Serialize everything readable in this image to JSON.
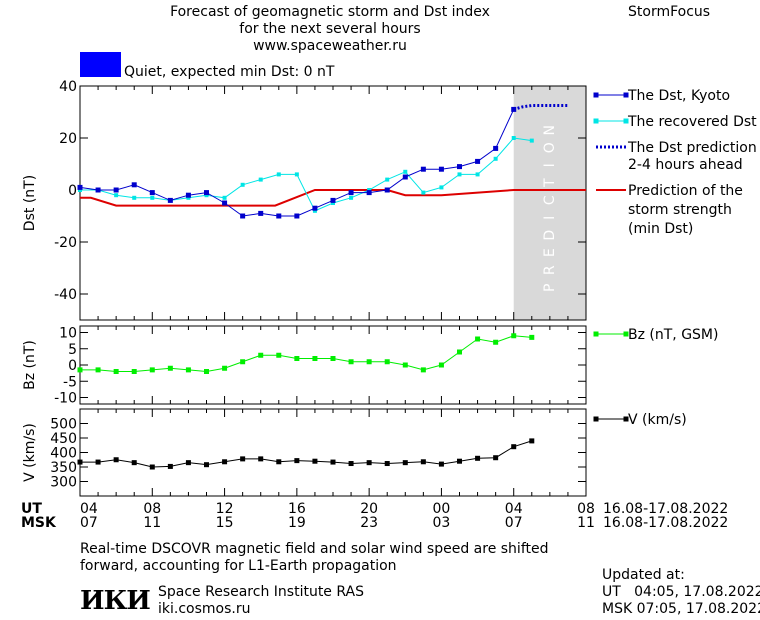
{
  "header": {
    "title_line1": "Forecast of geomagnetic storm and Dst index",
    "title_line2": "for the next several hours",
    "url": "www.spaceweather.ru",
    "brand": "StormFocus"
  },
  "status": {
    "color": "#0000ff",
    "text": "Quiet, expected min Dst: 0 nT"
  },
  "legend": {
    "dst_kyoto": "The Dst, Kyoto",
    "recovered": "The recovered Dst",
    "prediction_line1": "The Dst prediction",
    "prediction_line2": "2-4 hours ahead",
    "strength_line1": "Prediction of the",
    "strength_line2": "storm strength",
    "strength_line3": "(min Dst)",
    "bz": "Bz (nT, GSM)",
    "v": "V (km/s)"
  },
  "colors": {
    "dst_kyoto": "#0000cc",
    "recovered": "#00e5e5",
    "prediction": "#0000cc",
    "strength": "#dd0000",
    "bz": "#00ee00",
    "v": "#000000",
    "prediction_zone": "#d9d9d9"
  },
  "prediction_zone_label": "PREDICTION",
  "time_axis": {
    "ut_label": "UT",
    "msk_label": "MSK",
    "ut_ticks": [
      "04",
      "08",
      "12",
      "16",
      "20",
      "00",
      "04",
      "08"
    ],
    "msk_ticks": [
      "07",
      "11",
      "15",
      "19",
      "23",
      "03",
      "07",
      "11"
    ],
    "ut_dates": "16.08-17.08.2022",
    "msk_dates": "16.08-17.08.2022"
  },
  "footer": {
    "note_line1": "Real-time DSCOVR magnetic field and solar wind speed are shifted",
    "note_line2": "forward, accounting for L1-Earth propagation",
    "logo_text": "ИКИ",
    "institute": "Space Research Institute RAS",
    "site": "iki.cosmos.ru",
    "updated_label": "Updated at:",
    "updated_ut": "UT   04:05, 17.08.2022",
    "updated_msk": "MSK 07:05, 17.08.2022"
  },
  "chart_data": [
    {
      "type": "line",
      "ylabel": "Dst (nT)",
      "ylim": [
        -50,
        40
      ],
      "yticks": [
        40,
        20,
        0,
        -20,
        -40
      ],
      "xlim": [
        4,
        32
      ],
      "prediction_zone": [
        28,
        32
      ],
      "series": [
        {
          "name": "The Dst, Kyoto",
          "x": [
            4,
            5,
            6,
            7,
            8,
            9,
            10,
            11,
            12,
            13,
            14,
            15,
            16,
            17,
            18,
            19,
            20,
            21,
            22,
            23,
            24,
            25,
            26,
            27,
            28
          ],
          "values": [
            1,
            0,
            0,
            2,
            -1,
            -4,
            -2,
            -1,
            -5,
            -10,
            -9,
            -10,
            -10,
            -7,
            -4,
            -1,
            -1,
            0,
            5,
            8,
            8,
            9,
            11,
            16,
            31
          ]
        },
        {
          "name": "The recovered Dst",
          "x": [
            4,
            5,
            6,
            7,
            8,
            9,
            10,
            11,
            12,
            13,
            14,
            15,
            16,
            17,
            18,
            19,
            20,
            21,
            22,
            23,
            24,
            25,
            26,
            27,
            28,
            29
          ],
          "values": [
            0,
            0,
            -2,
            -3,
            -3,
            -4,
            -3,
            -2,
            -3,
            2,
            4,
            6,
            6,
            -8,
            -5,
            -3,
            0,
            4,
            7,
            -1,
            1,
            6,
            6,
            12,
            20,
            19
          ]
        },
        {
          "name": "The Dst prediction",
          "x": [
            28,
            28.5,
            29,
            29.5,
            30,
            30.5,
            31
          ],
          "values": [
            31,
            32,
            32.5,
            32.5,
            32.5,
            32.5,
            32.5
          ]
        },
        {
          "name": "Prediction of the storm strength (min Dst)",
          "x": [
            4,
            4.6,
            6,
            12.8,
            14.8,
            17,
            21,
            22,
            24,
            28,
            32
          ],
          "values": [
            -3,
            -3,
            -6,
            -6,
            -6,
            0,
            0,
            -2,
            -2,
            0,
            0
          ]
        }
      ]
    },
    {
      "type": "line",
      "ylabel": "Bz (nT)",
      "ylim": [
        -12,
        12
      ],
      "yticks": [
        10,
        5,
        0,
        -5,
        -10
      ],
      "xlim": [
        4,
        32
      ],
      "series": [
        {
          "name": "Bz (nT, GSM)",
          "x": [
            4,
            5,
            6,
            7,
            8,
            9,
            10,
            11,
            12,
            13,
            14,
            15,
            16,
            17,
            18,
            19,
            20,
            21,
            22,
            23,
            24,
            25,
            26,
            27,
            28,
            29
          ],
          "values": [
            -1.5,
            -1.5,
            -2,
            -2,
            -1.5,
            -1,
            -1.5,
            -2,
            -1,
            1,
            3,
            3,
            2,
            2,
            2,
            1,
            1,
            1,
            0,
            -1.5,
            0,
            4,
            8,
            7,
            9,
            8.5
          ]
        }
      ]
    },
    {
      "type": "line",
      "ylabel": "V (km/s)",
      "ylim": [
        250,
        550
      ],
      "yticks": [
        500,
        450,
        400,
        350,
        300
      ],
      "xlim": [
        4,
        32
      ],
      "series": [
        {
          "name": "V (km/s)",
          "x": [
            4,
            5,
            6,
            7,
            8,
            9,
            10,
            11,
            12,
            13,
            14,
            15,
            16,
            17,
            18,
            19,
            20,
            21,
            22,
            23,
            24,
            25,
            26,
            27,
            28,
            29
          ],
          "values": [
            367,
            367,
            375,
            365,
            350,
            352,
            365,
            358,
            368,
            378,
            378,
            368,
            372,
            370,
            367,
            362,
            365,
            362,
            365,
            368,
            360,
            370,
            380,
            382,
            420,
            440
          ]
        }
      ]
    }
  ]
}
